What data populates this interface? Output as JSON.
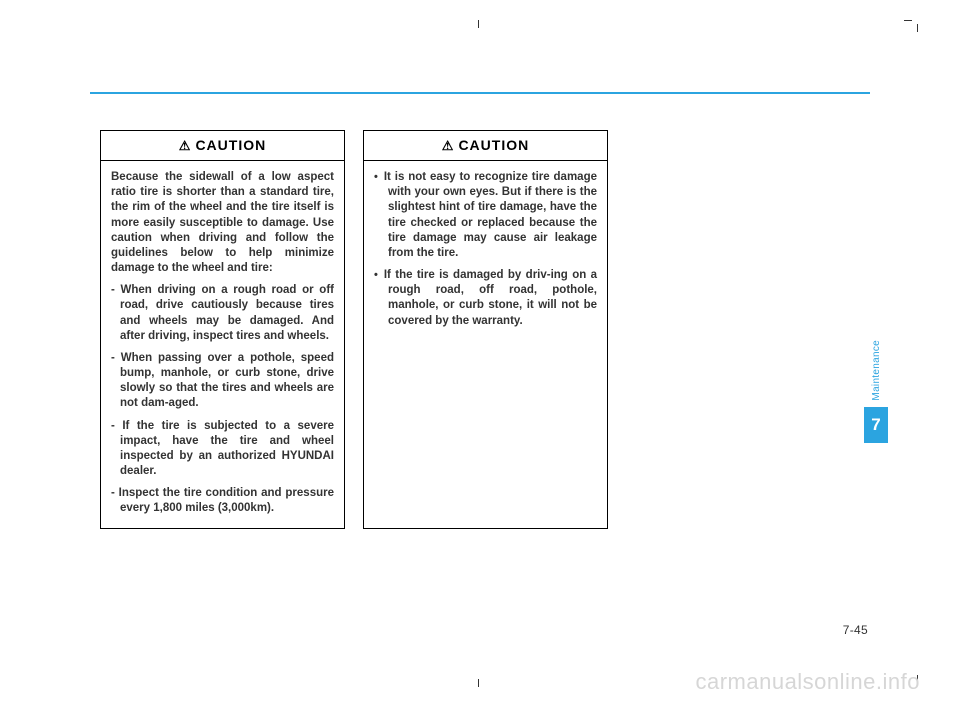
{
  "colors": {
    "accent": "#2ba4e0",
    "text": "#333333",
    "border": "#000000",
    "watermark": "#d6d6d6",
    "background": "#ffffff"
  },
  "blueLine": {
    "height": 2
  },
  "cautionBoxes": {
    "left": {
      "header": "CAUTION",
      "intro": "Because the sidewall of a low aspect ratio tire is shorter than a standard tire, the rim of the wheel and the tire itself is more easily susceptible to damage. Use caution when driving and follow the guidelines below to help minimize damage to the wheel and tire:",
      "items": [
        "- When driving on a rough road or off road, drive cautiously because tires and wheels may be damaged. And after driving, inspect tires and wheels.",
        "- When passing over a pothole, speed bump, manhole, or curb stone, drive slowly so that the tires and wheels are not dam-aged.",
        "- If the tire is subjected to a severe impact, have the tire and wheel inspected by an authorized HYUNDAI dealer.",
        "- Inspect the tire condition and pressure every 1,800 miles (3,000km)."
      ]
    },
    "right": {
      "header": "CAUTION",
      "items": [
        "It is not easy to recognize tire damage with your own eyes. But if there is the slightest hint of tire damage, have the tire checked or replaced because the tire damage may cause air leakage from the tire.",
        "If the tire is damaged by driv-ing on a rough road, off road, pothole, manhole, or curb stone, it will not be covered by the warranty."
      ]
    }
  },
  "sideTab": {
    "label": "Maintenance",
    "number": "7"
  },
  "pageNumber": "7-45",
  "watermark": "carmanualsonline.info",
  "typography": {
    "header_fontsize": 14,
    "body_fontsize": 11.5,
    "sidenum_fontsize": 17,
    "sidelabel_fontsize": 10,
    "pagenum_fontsize": 12,
    "watermark_fontsize": 22
  }
}
